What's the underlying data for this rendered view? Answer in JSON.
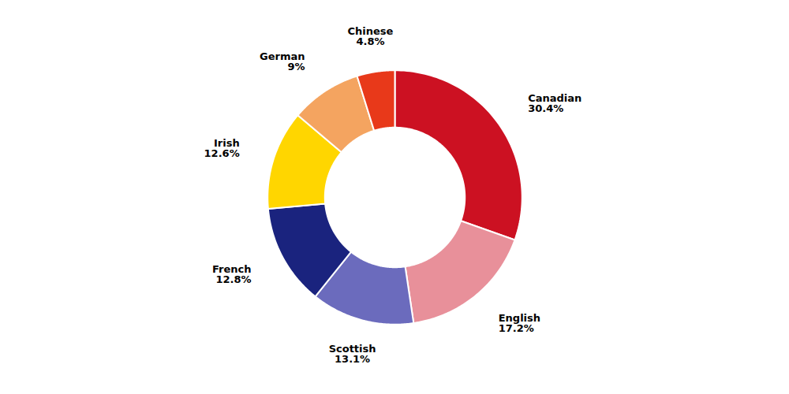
{
  "chart_data": {
    "type": "pie",
    "categories": [
      "Canadian",
      "English",
      "Scottish",
      "French",
      "Irish",
      "German",
      "Chinese"
    ],
    "values": [
      30.4,
      17.2,
      13.1,
      12.8,
      12.6,
      9.0,
      4.8
    ],
    "value_labels": [
      "30.4%",
      "17.2%",
      "13.1%",
      "12.8%",
      "12.6%",
      "9%",
      "4.8%"
    ],
    "colors": [
      "#cc1122",
      "#e8909a",
      "#6b6bbd",
      "#1a237e",
      "#ffd600",
      "#f4a460",
      "#e8391a"
    ],
    "data_labels": true,
    "tick_labels": false
  }
}
